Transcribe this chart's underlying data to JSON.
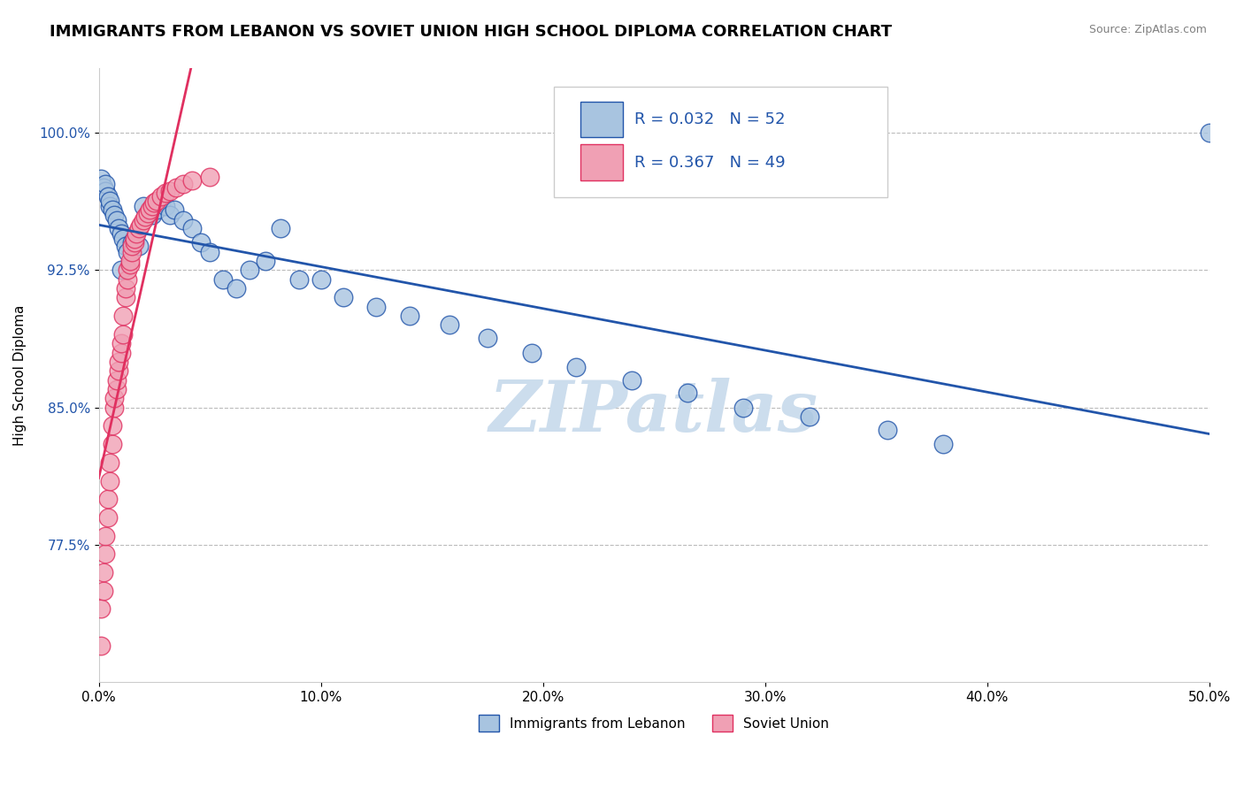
{
  "title": "IMMIGRANTS FROM LEBANON VS SOVIET UNION HIGH SCHOOL DIPLOMA CORRELATION CHART",
  "source_text": "Source: ZipAtlas.com",
  "ylabel": "High School Diploma",
  "xlim": [
    0.0,
    0.5
  ],
  "ylim": [
    0.7,
    1.035
  ],
  "yticks": [
    0.775,
    0.85,
    0.925,
    1.0
  ],
  "ytick_labels": [
    "77.5%",
    "85.0%",
    "92.5%",
    "100.0%"
  ],
  "xticks": [
    0.0,
    0.1,
    0.2,
    0.3,
    0.4,
    0.5
  ],
  "xtick_labels": [
    "0.0%",
    "10.0%",
    "20.0%",
    "30.0%",
    "40.0%",
    "50.0%"
  ],
  "lebanon_R": 0.032,
  "lebanon_N": 52,
  "soviet_R": 0.367,
  "soviet_N": 49,
  "lebanon_color": "#a8c4e0",
  "soviet_color": "#f0a0b4",
  "lebanon_line_color": "#2255aa",
  "soviet_line_color": "#e03060",
  "watermark_text": "ZIPatlas",
  "watermark_color": "#ccdded",
  "title_fontsize": 13,
  "axis_label_fontsize": 11,
  "tick_fontsize": 11,
  "legend_fontsize": 13,
  "lebanon_x": [
    0.001,
    0.002,
    0.003,
    0.003,
    0.004,
    0.005,
    0.005,
    0.006,
    0.007,
    0.008,
    0.009,
    0.01,
    0.011,
    0.012,
    0.013,
    0.015,
    0.016,
    0.018,
    0.02,
    0.022,
    0.024,
    0.026,
    0.028,
    0.03,
    0.032,
    0.034,
    0.038,
    0.042,
    0.046,
    0.05,
    0.056,
    0.062,
    0.068,
    0.075,
    0.082,
    0.09,
    0.1,
    0.11,
    0.125,
    0.14,
    0.158,
    0.175,
    0.195,
    0.215,
    0.24,
    0.265,
    0.29,
    0.32,
    0.355,
    0.01,
    0.38,
    0.5
  ],
  "lebanon_y": [
    0.975,
    0.97,
    0.968,
    0.972,
    0.965,
    0.96,
    0.963,
    0.958,
    0.955,
    0.952,
    0.948,
    0.945,
    0.942,
    0.938,
    0.935,
    0.94,
    0.942,
    0.938,
    0.96,
    0.955,
    0.955,
    0.958,
    0.962,
    0.96,
    0.955,
    0.958,
    0.952,
    0.948,
    0.94,
    0.935,
    0.92,
    0.915,
    0.925,
    0.93,
    0.948,
    0.92,
    0.92,
    0.91,
    0.905,
    0.9,
    0.895,
    0.888,
    0.88,
    0.872,
    0.865,
    0.858,
    0.85,
    0.845,
    0.838,
    0.925,
    0.83,
    1.0
  ],
  "soviet_x": [
    0.001,
    0.001,
    0.002,
    0.002,
    0.003,
    0.003,
    0.004,
    0.004,
    0.005,
    0.005,
    0.006,
    0.006,
    0.007,
    0.007,
    0.008,
    0.008,
    0.009,
    0.009,
    0.01,
    0.01,
    0.011,
    0.011,
    0.012,
    0.012,
    0.013,
    0.013,
    0.014,
    0.014,
    0.015,
    0.015,
    0.016,
    0.016,
    0.017,
    0.018,
    0.019,
    0.02,
    0.021,
    0.022,
    0.023,
    0.024,
    0.025,
    0.026,
    0.028,
    0.03,
    0.032,
    0.035,
    0.038,
    0.042,
    0.05
  ],
  "soviet_y": [
    0.72,
    0.74,
    0.75,
    0.76,
    0.77,
    0.78,
    0.79,
    0.8,
    0.81,
    0.82,
    0.83,
    0.84,
    0.85,
    0.855,
    0.86,
    0.865,
    0.87,
    0.875,
    0.88,
    0.885,
    0.89,
    0.9,
    0.91,
    0.915,
    0.92,
    0.925,
    0.928,
    0.93,
    0.935,
    0.938,
    0.94,
    0.942,
    0.945,
    0.948,
    0.95,
    0.952,
    0.954,
    0.956,
    0.958,
    0.96,
    0.962,
    0.963,
    0.965,
    0.967,
    0.968,
    0.97,
    0.972,
    0.974,
    0.976
  ]
}
